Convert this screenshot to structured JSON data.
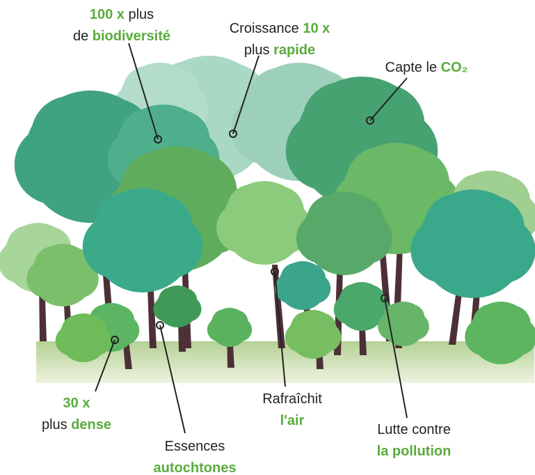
{
  "accent_color": "#5aab3c",
  "text_color": "#222222",
  "labels": [
    {
      "lines": [
        [
          {
            "text": "100 x",
            "accent": true
          },
          {
            "text": " plus",
            "accent": false
          }
        ],
        [
          {
            "text": "de ",
            "accent": false
          },
          {
            "text": "biodiversité",
            "accent": true
          }
        ]
      ]
    },
    {
      "lines": [
        [
          {
            "text": "Croissance ",
            "accent": false
          },
          {
            "text": "10 x",
            "accent": true
          }
        ],
        [
          {
            "text": "plus ",
            "accent": false
          },
          {
            "text": "rapide",
            "accent": true
          }
        ]
      ]
    },
    {
      "lines": [
        [
          {
            "text": "Capte le ",
            "accent": false
          },
          {
            "text": "CO₂",
            "accent": true
          }
        ]
      ]
    },
    {
      "lines": [
        [
          {
            "text": "30 x",
            "accent": true
          }
        ],
        [
          {
            "text": "plus ",
            "accent": false
          },
          {
            "text": "dense",
            "accent": true
          }
        ]
      ]
    },
    {
      "lines": [
        [
          {
            "text": "Essences",
            "accent": false
          }
        ],
        [
          {
            "text": "autochtones",
            "accent": true
          }
        ]
      ]
    },
    {
      "lines": [
        [
          {
            "text": "Rafraîchit",
            "accent": false
          }
        ],
        [
          {
            "text": "l'air",
            "accent": true
          }
        ]
      ]
    },
    {
      "lines": [
        [
          {
            "text": "Lutte contre",
            "accent": false
          }
        ],
        [
          {
            "text": "la pollution",
            "accent": true
          }
        ]
      ]
    }
  ]
}
